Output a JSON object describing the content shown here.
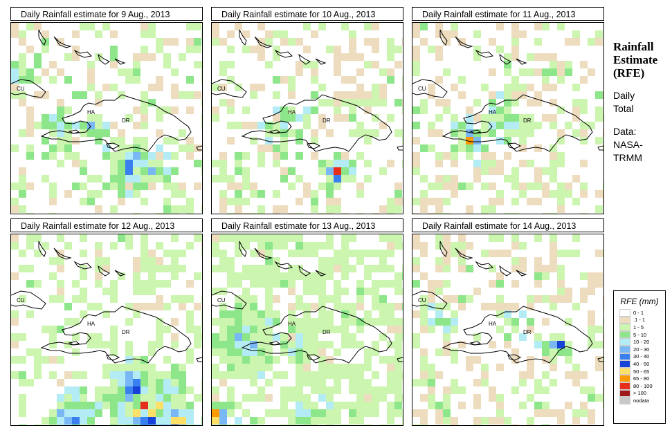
{
  "panels": [
    {
      "title": "Daily Rainfall estimate for  9 Aug., 2013",
      "date": "9 Aug., 2013"
    },
    {
      "title": "Daily Rainfall estimate for  10 Aug., 2013",
      "date": "10 Aug., 2013"
    },
    {
      "title": "Daily Rainfall estimate for  11 Aug., 2013",
      "date": "11 Aug., 2013"
    },
    {
      "title": "Daily Rainfall estimate for  12 Aug., 2013",
      "date": "12 Aug., 2013"
    },
    {
      "title": "Daily Rainfall estimate for  13 Aug., 2013",
      "date": "13 Aug., 2013"
    },
    {
      "title": "Daily Rainfall estimate for  14 Aug., 2013",
      "date": "14 Aug., 2013"
    }
  ],
  "map_labels": {
    "cuba": "CU",
    "haiti": "HA",
    "dominican_republic": "DR"
  },
  "sidebar": {
    "title_line1": "Rainfall",
    "title_line2": "Estimate",
    "title_line3": "(RFE)",
    "period_line1": "Daily",
    "period_line2": "Total",
    "source_line1": "Data:",
    "source_line2": "NASA-",
    "source_line3": "TRMM"
  },
  "legend": {
    "title": "RFE (mm)",
    "items": [
      {
        "label": "0 - 1",
        "color": "#ffffff"
      },
      {
        "label": ".1 - 1",
        "color": "#eedcbf"
      },
      {
        "label": "1 - 5",
        "color": "#ccf5b0"
      },
      {
        "label": "5 - 10",
        "color": "#8ee68a"
      },
      {
        "label": "10 - 20",
        "color": "#b3ecf5"
      },
      {
        "label": "20 - 30",
        "color": "#7ab8f5"
      },
      {
        "label": "30 - 40",
        "color": "#3a7ff0"
      },
      {
        "label": "40 - 50",
        "color": "#1642d8"
      },
      {
        "label": "50 - 65",
        "color": "#ffe066"
      },
      {
        "label": "65 - 80",
        "color": "#ff9900"
      },
      {
        "label": "80 - 100",
        "color": "#e62e1a"
      },
      {
        "label": "> 100",
        "color": "#a01a1a"
      },
      {
        "label": "nodata",
        "color": "#c8c8c8"
      }
    ]
  }
}
